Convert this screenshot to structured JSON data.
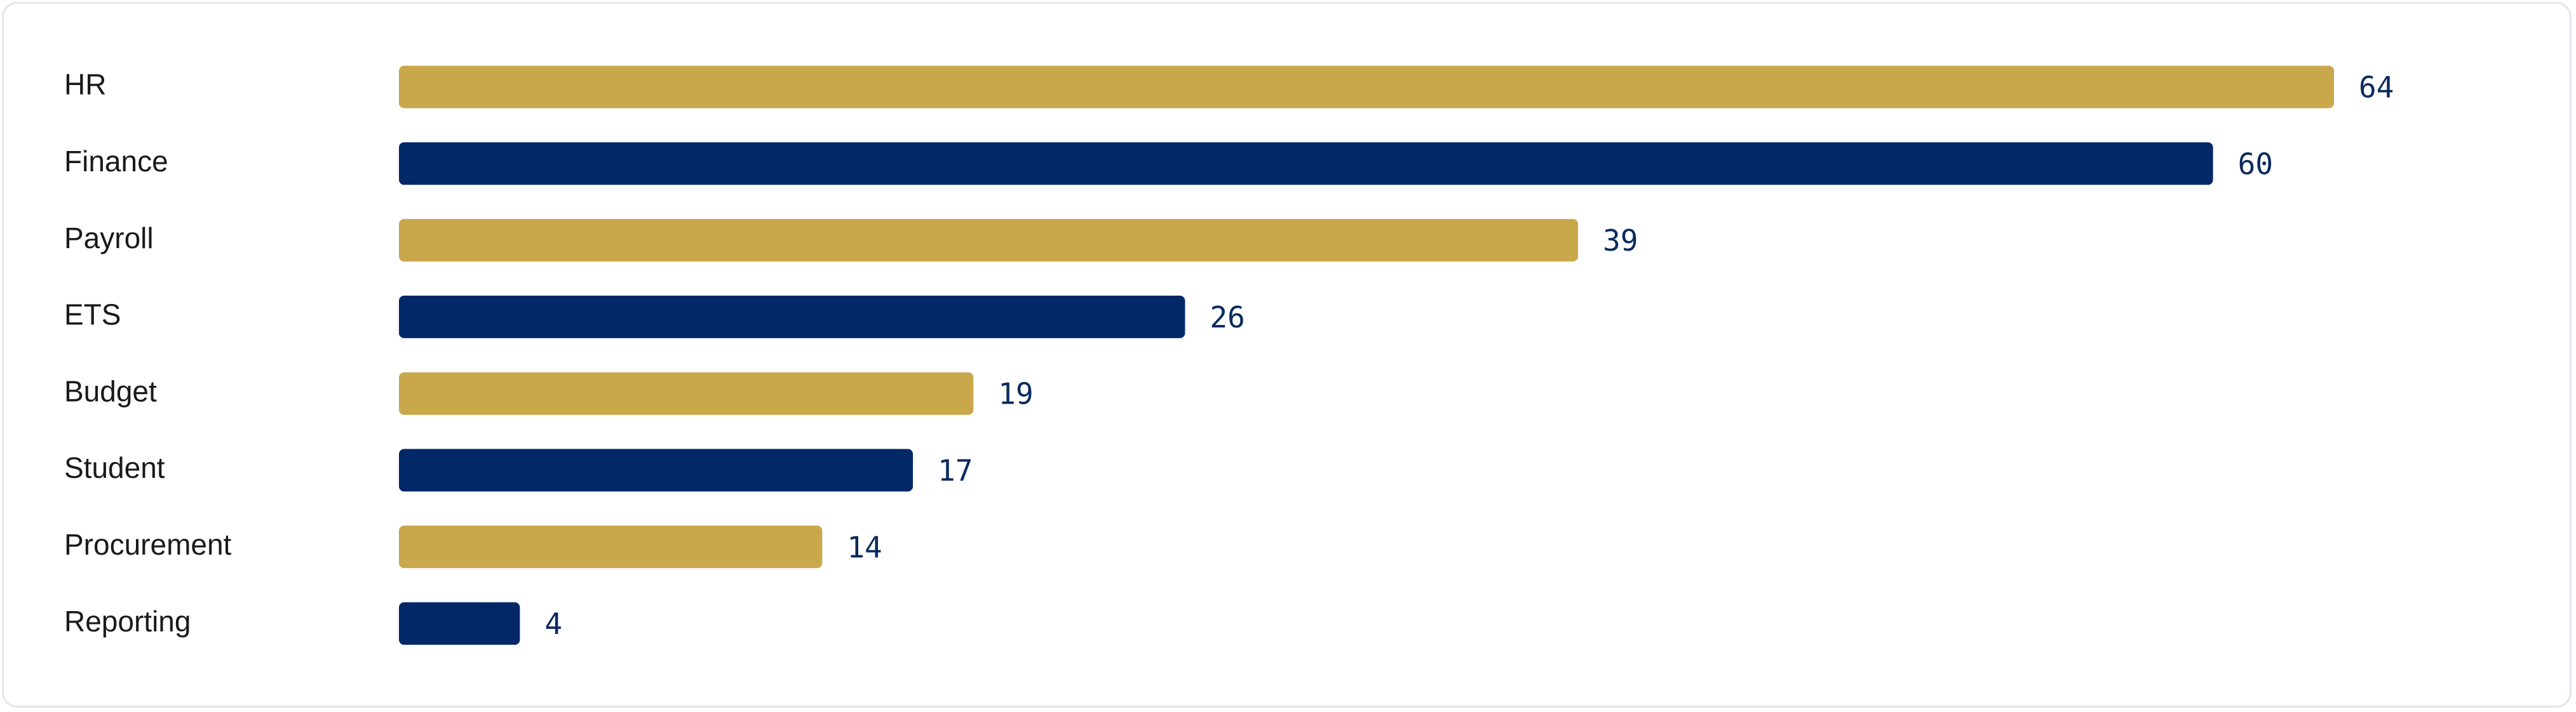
{
  "chart_data": {
    "type": "bar",
    "orientation": "horizontal",
    "categories": [
      "HR",
      "Finance",
      "Payroll",
      "ETS",
      "Budget",
      "Student",
      "Procurement",
      "Reporting"
    ],
    "values": [
      64,
      60,
      39,
      26,
      19,
      17,
      14,
      4
    ],
    "colors": [
      "#c9a84c",
      "#022868",
      "#c9a84c",
      "#022868",
      "#c9a84c",
      "#022868",
      "#c9a84c",
      "#022868"
    ]
  }
}
